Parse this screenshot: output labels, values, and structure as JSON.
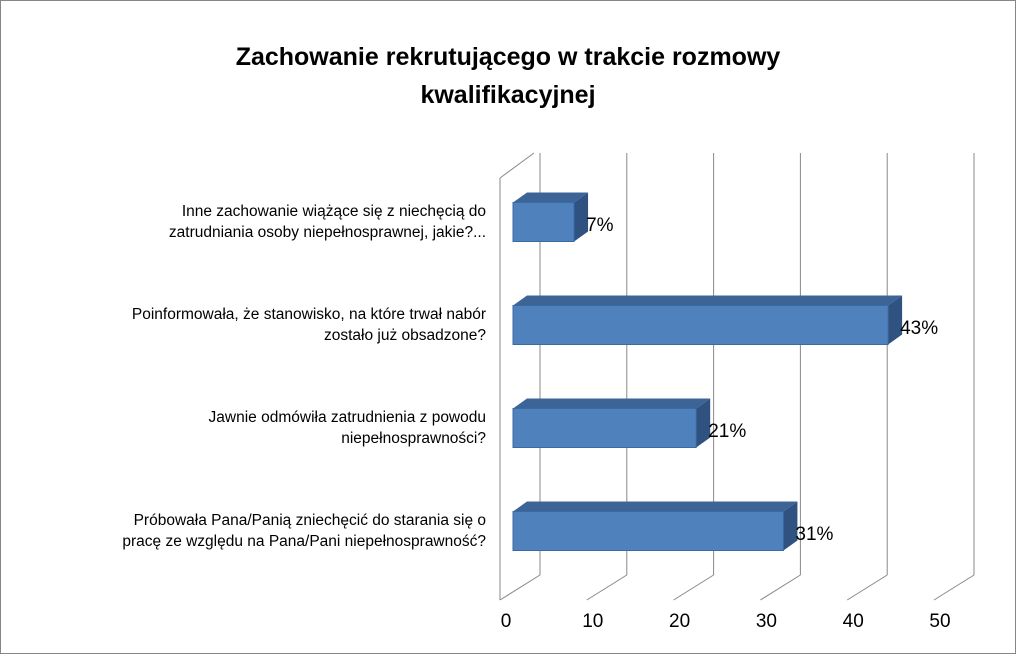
{
  "chart_data": {
    "type": "bar3d_horizontal",
    "title": "Zachowanie rekrutującego w trakcie rozmowy\nkwalifikacyjnej",
    "categories": [
      "Inne zachowanie wiążące się z niechęcią do\nzatrudniania osoby niepełnosprawnej, jakie?...",
      "Poinformowała, że stanowisko, na które trwał nabór\nzostało już obsadzone?",
      "Jawnie odmówiła zatrudnienia z powodu\nniepełnosprawności?",
      "Próbowała Pana/Panią zniechęcić do starania się o\npracę ze względu na Pana/Pani niepełnosprawność?"
    ],
    "values": [
      7,
      43,
      21,
      31
    ],
    "value_labels": [
      "7%",
      "43%",
      "21%",
      "31%"
    ],
    "color": "#4f81bd",
    "xlim": [
      0,
      50
    ],
    "xticks": [
      0,
      10,
      20,
      30,
      40,
      50
    ],
    "grid": true
  }
}
